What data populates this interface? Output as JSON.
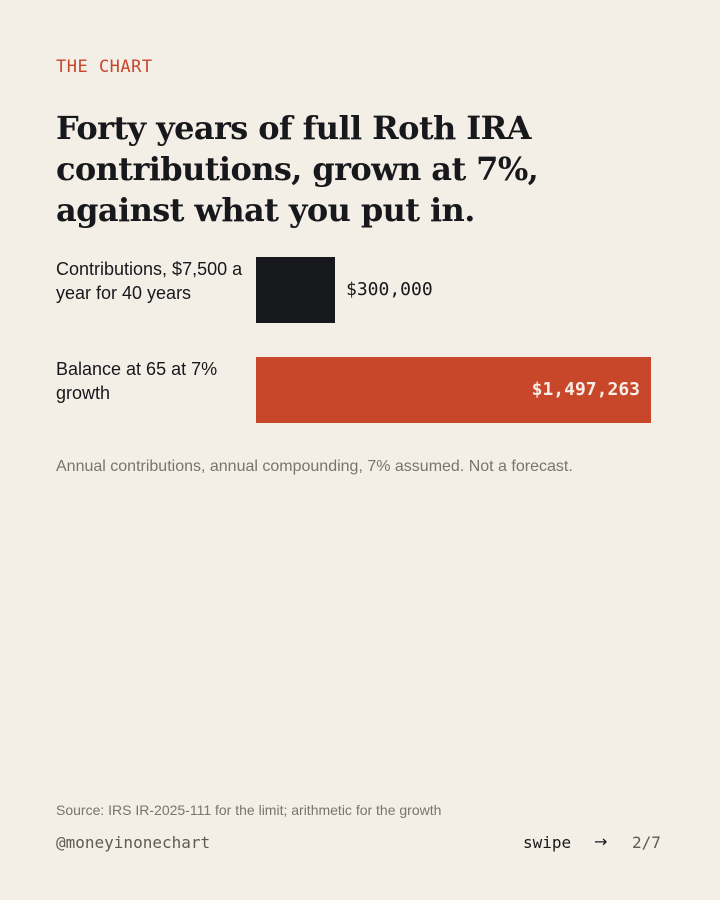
{
  "kicker": "THE CHART",
  "headline": "Forty years of full Roth IRA contributions, grown at 7%, against what you put in.",
  "chart_data": {
    "type": "bar",
    "orientation": "horizontal",
    "categories": [
      "Contributions, $7,500 a year for 40 years",
      "Balance at 65 at 7% growth"
    ],
    "values": [
      300000,
      1497263
    ],
    "value_labels": [
      "$300,000",
      "$1,497,263"
    ],
    "colors": [
      "#17181b",
      "#c8462a"
    ],
    "title": "Forty years of full Roth IRA contributions, grown at 7%, against what you put in.",
    "xlabel": "",
    "ylabel": "",
    "grid": false,
    "legend": "none"
  },
  "note": "Annual contributions, annual compounding, 7% assumed. Not a forecast.",
  "footer": {
    "source": "Source: IRS IR-2025-111 for the limit; arithmetic for the growth",
    "handle": "@moneyinonechart",
    "swipe": "swipe",
    "arrow": "→",
    "page": "2/7"
  },
  "colors": {
    "background": "#f3eee6",
    "accent": "#c8462a",
    "ink": "#17181b",
    "muted": "#7a746c"
  }
}
